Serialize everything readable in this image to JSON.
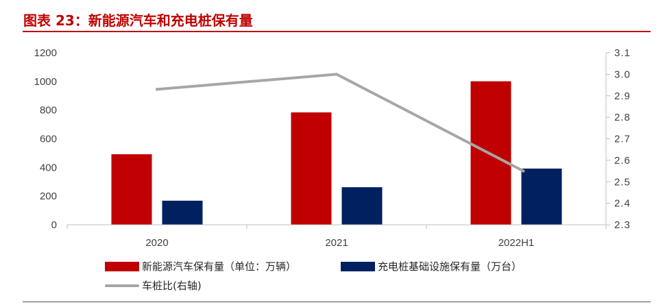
{
  "header": {
    "title": "图表 23：新能源汽车和充电桩保有量"
  },
  "colors": {
    "ev": "#c00000",
    "charger": "#002060",
    "ratio": "#a6a6a6",
    "title": "#c00000"
  },
  "chart_data": {
    "type": "bar",
    "categories": [
      "2020",
      "2021",
      "2022H1"
    ],
    "series": [
      {
        "name": "新能源汽车保有量（单位：万辆）",
        "kind": "bar",
        "axis": "left",
        "values": [
          492,
          784,
          1001
        ]
      },
      {
        "name": "充电桩基础设施保有量（万台）",
        "kind": "bar",
        "axis": "left",
        "values": [
          168,
          262,
          392
        ]
      },
      {
        "name": "车桩比(右轴)",
        "kind": "line",
        "axis": "right",
        "values": [
          2.93,
          3.0,
          2.55
        ]
      }
    ],
    "y_left": {
      "min": 0,
      "max": 1200,
      "ticks": [
        "0",
        "200",
        "400",
        "600",
        "800",
        "1000",
        "1200"
      ]
    },
    "y_right": {
      "min": 2.3,
      "max": 3.1,
      "ticks": [
        "2.3",
        "2.4",
        "2.5",
        "2.6",
        "2.7",
        "2.8",
        "2.9",
        "3.0",
        "3.1"
      ]
    },
    "grid": false,
    "legend_position": "bottom"
  }
}
